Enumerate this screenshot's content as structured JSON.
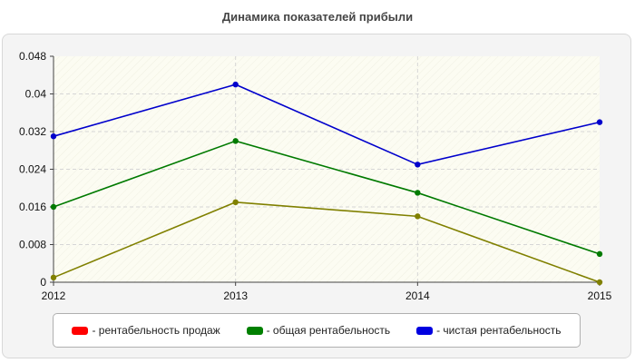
{
  "chart_data": {
    "type": "line",
    "title": "Динамика показателей прибыли",
    "xlabel": "",
    "ylabel": "",
    "x": [
      "2012",
      "2013",
      "2014",
      "2015"
    ],
    "yticks": [
      "0",
      "0.008",
      "0.016",
      "0.024",
      "0.032",
      "0.04",
      "0.048"
    ],
    "ylim": [
      0,
      0.048
    ],
    "grid": true,
    "legend_position": "bottom",
    "series": [
      {
        "name": "- рентабельность продаж",
        "color": "#ff0000",
        "values": [
          0.001,
          0.017,
          0.014,
          0.0
        ]
      },
      {
        "name": "- общая рентабельность",
        "color": "#008000",
        "values": [
          0.016,
          0.03,
          0.019,
          0.006
        ]
      },
      {
        "name": "- чистая рентабельность",
        "color": "#0000e0",
        "values": [
          0.031,
          0.042,
          0.025,
          0.034
        ]
      }
    ],
    "render_colors": [
      "#808000",
      "#007a00",
      "#0000cc"
    ]
  }
}
